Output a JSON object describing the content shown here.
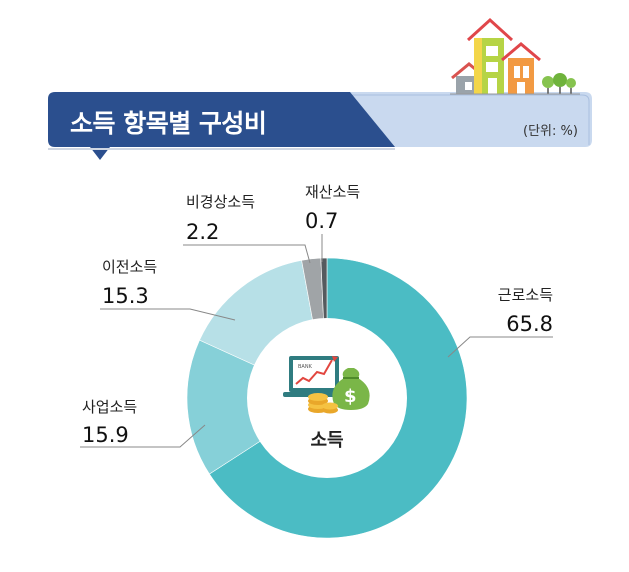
{
  "header": {
    "title": "소득 항목별 구성비",
    "unit": "(단위: %)"
  },
  "center": {
    "label": "소득",
    "bank_text": "BANK"
  },
  "colors": {
    "banner_dark": "#2b4f8e",
    "banner_light": "#c9d9ef",
    "slice_colors": [
      "#4bbcc4",
      "#86d0d8",
      "#b7e0e7",
      "#a0a4a7",
      "#555a5e"
    ]
  },
  "chart_data": {
    "type": "pie",
    "title": "소득 항목별 구성비",
    "categories": [
      "근로소득",
      "사업소득",
      "이전소득",
      "비경상소득",
      "재산소득"
    ],
    "values": [
      65.8,
      15.9,
      15.3,
      2.2,
      0.7
    ],
    "value_labels": [
      "65.8",
      "15.9",
      "15.3",
      "2.2",
      "0.7"
    ]
  }
}
